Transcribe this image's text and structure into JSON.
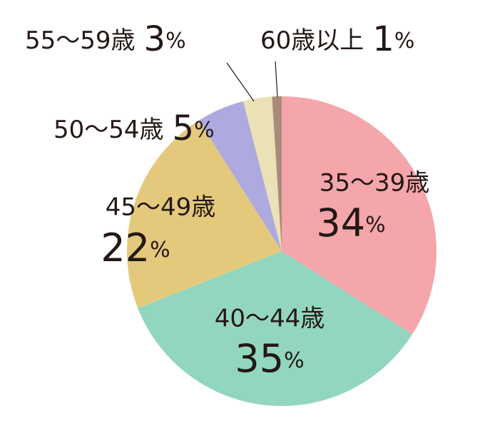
{
  "chart_data": {
    "type": "pie",
    "categories": [
      "35〜39歳",
      "40〜44歳",
      "45〜49歳",
      "50〜54歳",
      "55〜59歳",
      "60歳以上"
    ],
    "values": [
      34,
      35,
      22,
      5,
      3,
      1
    ],
    "value_labels": [
      "34%",
      "35%",
      "22%",
      "5%",
      "3%",
      "1%"
    ],
    "colors": [
      "#f4a6aa",
      "#93d6bf",
      "#e4c97c",
      "#aeaadf",
      "#ebe1b6",
      "#a98b7c"
    ]
  }
}
